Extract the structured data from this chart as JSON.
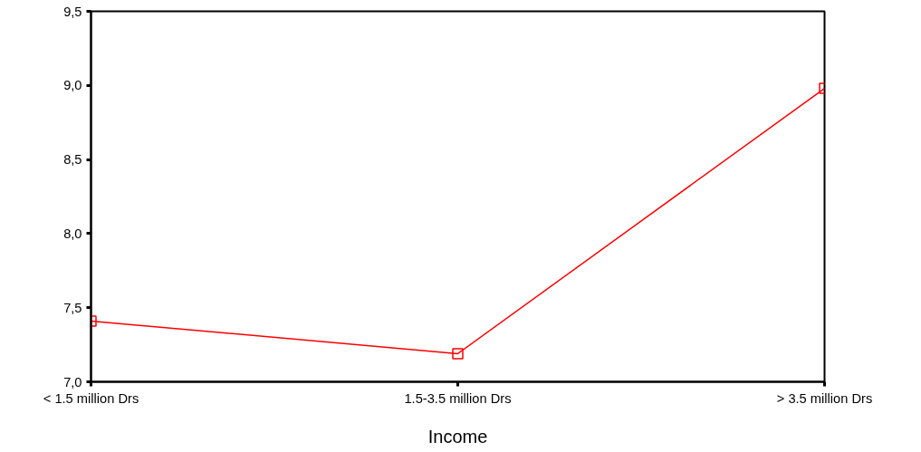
{
  "chart_data": {
    "type": "line",
    "xlabel": "Income",
    "categories": [
      "< 1.5 million Drs",
      "1.5-3.5 million Drs",
      "> 3.5 million Drs"
    ],
    "series": [
      {
        "color": "#ff0000",
        "values": [
          7.41,
          7.19,
          8.98
        ]
      }
    ],
    "ylim": [
      7.0,
      9.5
    ],
    "yticks": [
      {
        "value": 7.0,
        "label": "7,0"
      },
      {
        "value": 7.5,
        "label": "7,5"
      },
      {
        "value": 8.0,
        "label": "8,0"
      },
      {
        "value": 8.5,
        "label": "8,5"
      },
      {
        "value": 9.0,
        "label": "9,0"
      },
      {
        "value": 9.5,
        "label": "9,5"
      }
    ],
    "grid": false,
    "marker": "square",
    "line_style": "solid"
  }
}
